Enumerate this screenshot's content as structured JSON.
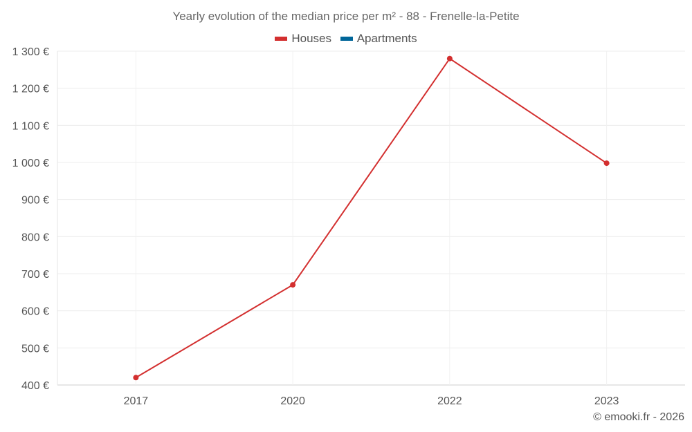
{
  "chart_data": {
    "type": "line",
    "title": "Yearly evolution of the median price per m² - 88 - Frenelle-la-Petite",
    "categories": [
      "2017",
      "2020",
      "2022",
      "2023"
    ],
    "series": [
      {
        "name": "Houses",
        "color": "#d32f2f",
        "values": [
          420,
          670,
          1280,
          998
        ]
      },
      {
        "name": "Apartments",
        "color": "#006699",
        "values": [
          null,
          null,
          null,
          null
        ]
      }
    ],
    "yticks": [
      400,
      500,
      600,
      700,
      800,
      900,
      1000,
      1100,
      1200,
      1300
    ],
    "ytick_labels": [
      "400 €",
      "500 €",
      "600 €",
      "700 €",
      "800 €",
      "900 €",
      "1 000 €",
      "1 100 €",
      "1 200 €",
      "1 300 €"
    ],
    "ylim": [
      400,
      1300
    ],
    "xlabel": "",
    "ylabel": "",
    "legend_position": "top-center",
    "grid": true
  },
  "credit": "© emooki.fr - 2026"
}
